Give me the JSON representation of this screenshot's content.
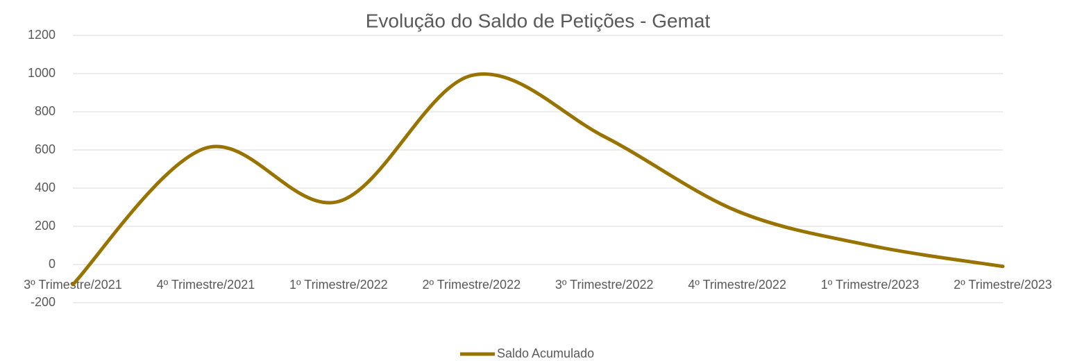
{
  "chart_data": {
    "type": "line",
    "title": "Evolução do Saldo de Petições - Gemat",
    "categories": [
      "3º Trimestre/2021",
      "4º Trimestre/2021",
      "1º Trimestre/2022",
      "2º Trimestre/2022",
      "3º Trimestre/2022",
      "4º Trimestre/2022",
      "1º Trimestre/2023",
      "2º Trimestre/2023"
    ],
    "series": [
      {
        "name": "Saldo Acumulado",
        "color": "#997300",
        "values": [
          -105,
          610,
          330,
          990,
          670,
          280,
          100,
          -10
        ]
      }
    ],
    "ylim": [
      -200,
      1200
    ],
    "yticks": [
      -200,
      0,
      200,
      400,
      600,
      800,
      1000,
      1200
    ],
    "grid": true,
    "smooth": true,
    "legend": "bottom"
  }
}
